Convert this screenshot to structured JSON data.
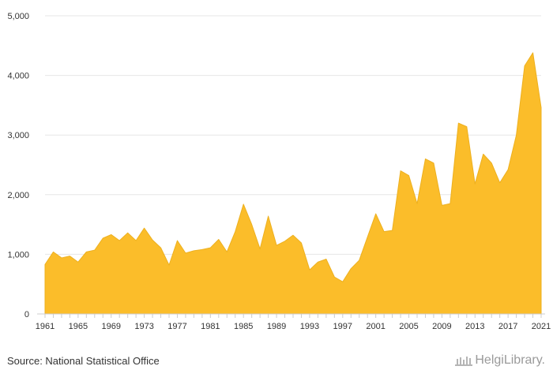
{
  "chart_data": {
    "type": "area",
    "title": "",
    "xlabel": "",
    "ylabel": "",
    "ylim": [
      0,
      5000
    ],
    "yticks": [
      0,
      1000,
      2000,
      3000,
      4000,
      5000
    ],
    "ytick_labels": [
      "0",
      "1,000",
      "2,000",
      "3,000",
      "4,000",
      "5,000"
    ],
    "xticks": [
      1961,
      1965,
      1969,
      1973,
      1977,
      1981,
      1985,
      1989,
      1993,
      1997,
      2001,
      2005,
      2009,
      2013,
      2017,
      2021
    ],
    "grid": true,
    "fill_color": "#FBBD2A",
    "line_color": "#EDB01F",
    "x": [
      1961,
      1962,
      1963,
      1964,
      1965,
      1966,
      1967,
      1968,
      1969,
      1970,
      1971,
      1972,
      1973,
      1974,
      1975,
      1976,
      1977,
      1978,
      1979,
      1980,
      1981,
      1982,
      1983,
      1984,
      1985,
      1986,
      1987,
      1988,
      1989,
      1990,
      1991,
      1992,
      1993,
      1994,
      1995,
      1996,
      1997,
      1998,
      1999,
      2000,
      2001,
      2002,
      2003,
      2004,
      2005,
      2006,
      2007,
      2008,
      2009,
      2010,
      2011,
      2012,
      2013,
      2014,
      2015,
      2016,
      2017,
      2018,
      2019,
      2020,
      2021
    ],
    "values": [
      830,
      1040,
      940,
      970,
      870,
      1040,
      1070,
      1270,
      1330,
      1230,
      1360,
      1230,
      1440,
      1240,
      1110,
      820,
      1230,
      1020,
      1060,
      1080,
      1110,
      1250,
      1040,
      1380,
      1840,
      1500,
      1090,
      1640,
      1150,
      1220,
      1320,
      1190,
      740,
      870,
      920,
      620,
      540,
      760,
      900,
      1290,
      1680,
      1380,
      1400,
      2400,
      2320,
      1850,
      2600,
      2530,
      1820,
      1850,
      3200,
      3140,
      2180,
      2680,
      2530,
      2200,
      2420,
      3000,
      4160,
      4380,
      3460
    ]
  },
  "footer": {
    "source": "Source: National Statistical Office",
    "logo_text": "HelgiLibrary."
  }
}
